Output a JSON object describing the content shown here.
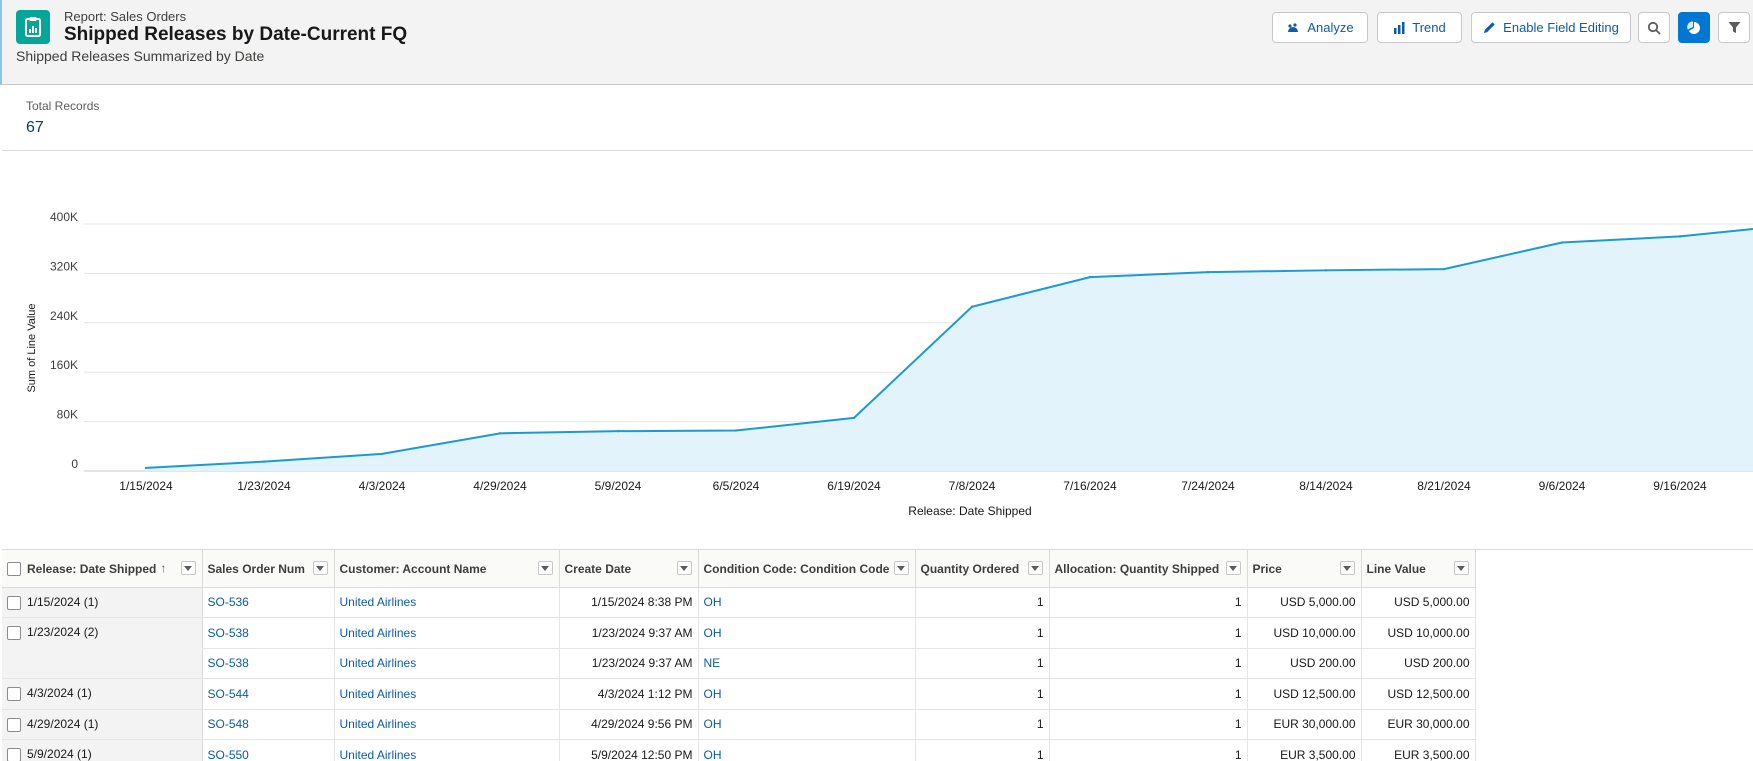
{
  "header": {
    "eyebrow": "Report: Sales Orders",
    "title": "Shipped Releases by Date-Current FQ",
    "subtitle": "Shipped Releases Summarized by Date",
    "buttons": {
      "analyze": "Analyze",
      "trend": "Trend",
      "edit": "Enable Field Editing"
    }
  },
  "summary": {
    "label": "Total Records",
    "value": "67"
  },
  "colors": {
    "accent": "#0176d3",
    "line": "#1b9ad6",
    "area": "#e3f3fb",
    "link": "#0b5cab",
    "teal": "#06a59a"
  },
  "chart_data": {
    "type": "area",
    "xlabel": "Release: Date Shipped",
    "ylabel": "Sum of Line Value",
    "ylim": [
      0,
      400000
    ],
    "yticks": [
      {
        "value": 0,
        "label": "0"
      },
      {
        "value": 80000,
        "label": "80K"
      },
      {
        "value": 160000,
        "label": "160K"
      },
      {
        "value": 240000,
        "label": "240K"
      },
      {
        "value": 320000,
        "label": "320K"
      },
      {
        "value": 400000,
        "label": "400K"
      }
    ],
    "categories": [
      "1/15/2024",
      "1/23/2024",
      "4/3/2024",
      "4/29/2024",
      "5/9/2024",
      "6/5/2024",
      "6/19/2024",
      "7/8/2024",
      "7/16/2024",
      "7/24/2024",
      "8/14/2024",
      "8/21/2024",
      "9/6/2024",
      "9/16/2024"
    ],
    "values": [
      5000,
      15200,
      27700,
      61000,
      64500,
      65500,
      86000,
      266000,
      314000,
      322000,
      325000,
      327000,
      370000,
      380000
    ],
    "continues_past_edge": 392000,
    "grid": true
  },
  "table": {
    "columns": [
      {
        "label": "Release: Date Shipped",
        "sorted": "asc"
      },
      {
        "label": "Sales Order Num"
      },
      {
        "label": "Customer: Account Name"
      },
      {
        "label": "Create Date"
      },
      {
        "label": "Condition Code: Condition Code"
      },
      {
        "label": "Quantity Ordered"
      },
      {
        "label": "Allocation: Quantity Shipped"
      },
      {
        "label": "Price"
      },
      {
        "label": "Line Value"
      }
    ],
    "rows": [
      {
        "group": "1/15/2024 (1)",
        "so": "SO-536",
        "customer": "United Airlines",
        "created": "1/15/2024 8:38 PM",
        "cond": "OH",
        "qty": "1",
        "shipped": "1",
        "price": "USD 5,000.00",
        "value": "USD 5,000.00"
      },
      {
        "group": "1/23/2024 (2)",
        "so": "SO-538",
        "customer": "United Airlines",
        "created": "1/23/2024 9:37 AM",
        "cond": "OH",
        "qty": "1",
        "shipped": "1",
        "price": "USD 10,000.00",
        "value": "USD 10,000.00"
      },
      {
        "group": "",
        "so": "SO-538",
        "customer": "United Airlines",
        "created": "1/23/2024 9:37 AM",
        "cond": "NE",
        "qty": "1",
        "shipped": "1",
        "price": "USD 200.00",
        "value": "USD 200.00"
      },
      {
        "group": "4/3/2024 (1)",
        "so": "SO-544",
        "customer": "United Airlines",
        "created": "4/3/2024 1:12 PM",
        "cond": "OH",
        "qty": "1",
        "shipped": "1",
        "price": "USD 12,500.00",
        "value": "USD 12,500.00"
      },
      {
        "group": "4/29/2024 (1)",
        "so": "SO-548",
        "customer": "United Airlines",
        "created": "4/29/2024 9:56 PM",
        "cond": "OH",
        "qty": "1",
        "shipped": "1",
        "price": "EUR 30,000.00",
        "value": "EUR 30,000.00"
      },
      {
        "group": "5/9/2024 (1)",
        "so": "SO-550",
        "customer": "United Airlines",
        "created": "5/9/2024 12:50 PM",
        "cond": "OH",
        "qty": "1",
        "shipped": "1",
        "price": "EUR 3,500.00",
        "value": "EUR 3,500.00"
      }
    ]
  }
}
